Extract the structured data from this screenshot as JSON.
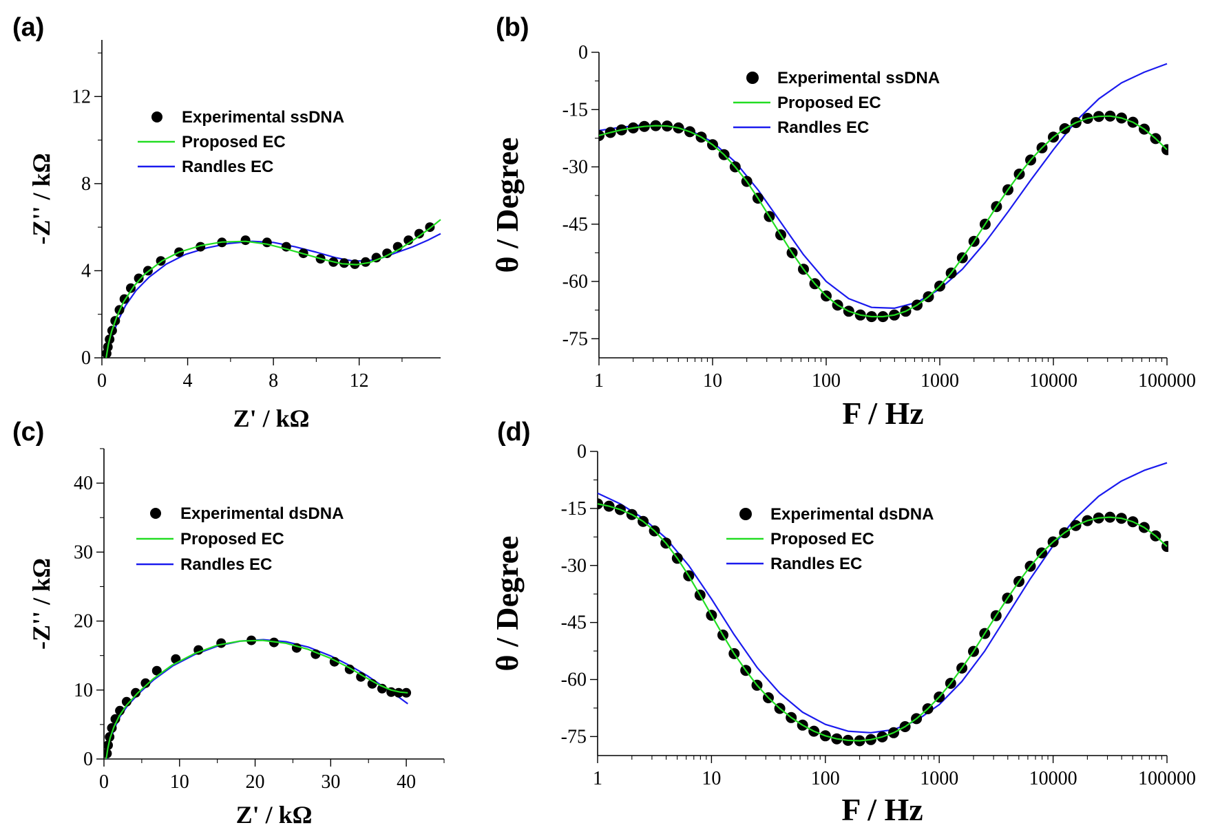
{
  "colors": {
    "experimental": "#000000",
    "proposed": "#22dd22",
    "randles": "#1a1aee",
    "axis": "#000000"
  },
  "chart_data": [
    {
      "id": "a",
      "panel_label": "(a)",
      "type": "scatter",
      "xscale": "linear",
      "xlim": [
        0,
        15.8
      ],
      "ylim": [
        0,
        14.6
      ],
      "xticks": [
        0,
        4,
        8,
        12
      ],
      "xtick_labels": [
        "0",
        "4",
        "8",
        "12"
      ],
      "yticks": [
        0,
        4,
        8,
        12
      ],
      "ytick_labels": [
        "0",
        "4",
        "8",
        "12"
      ],
      "xlabel": "Z' / kΩ",
      "ylabel": "-Z'' / kΩ",
      "legend": {
        "position": "upper-center",
        "entries": [
          "Experimental ssDNA",
          "Proposed EC",
          "Randles EC"
        ]
      },
      "series": [
        {
          "name": "Experimental ssDNA",
          "kind": "markers",
          "x": [
            0.22,
            0.28,
            0.36,
            0.48,
            0.62,
            0.82,
            1.05,
            1.35,
            1.72,
            2.15,
            2.75,
            3.6,
            4.6,
            5.6,
            6.7,
            7.7,
            8.6,
            9.4,
            10.2,
            10.8,
            11.3,
            11.8,
            12.3,
            12.8,
            13.3,
            13.8,
            14.3,
            14.8,
            15.3
          ],
          "y": [
            0.2,
            0.5,
            0.85,
            1.25,
            1.7,
            2.2,
            2.7,
            3.2,
            3.65,
            4.0,
            4.45,
            4.85,
            5.1,
            5.3,
            5.4,
            5.3,
            5.1,
            4.8,
            4.55,
            4.4,
            4.35,
            4.3,
            4.4,
            4.6,
            4.8,
            5.1,
            5.4,
            5.7,
            6.0
          ]
        },
        {
          "name": "Proposed EC",
          "kind": "line",
          "x": [
            0.2,
            0.3,
            0.45,
            0.7,
            1.0,
            1.5,
            2.0,
            2.8,
            3.6,
            4.6,
            5.6,
            6.7,
            7.7,
            8.6,
            9.5,
            10.4,
            11.2,
            11.9,
            12.5,
            13.2,
            13.9,
            14.6,
            15.3,
            15.8
          ],
          "y": [
            0.0,
            0.6,
            1.2,
            1.9,
            2.55,
            3.3,
            3.85,
            4.45,
            4.85,
            5.15,
            5.32,
            5.35,
            5.22,
            5.0,
            4.75,
            4.5,
            4.32,
            4.28,
            4.38,
            4.65,
            5.0,
            5.45,
            5.95,
            6.35
          ]
        },
        {
          "name": "Randles EC",
          "kind": "line",
          "x": [
            0.25,
            0.35,
            0.5,
            0.75,
            1.1,
            1.6,
            2.2,
            3.0,
            3.9,
            4.9,
            5.9,
            7.0,
            8.0,
            9.0,
            10.0,
            10.9,
            11.7,
            12.4,
            13.1,
            13.8,
            14.5,
            15.2,
            15.8
          ],
          "y": [
            0.0,
            0.5,
            1.05,
            1.7,
            2.4,
            3.1,
            3.7,
            4.3,
            4.75,
            5.05,
            5.25,
            5.35,
            5.3,
            5.1,
            4.85,
            4.6,
            4.45,
            4.45,
            4.6,
            4.85,
            5.1,
            5.4,
            5.7
          ]
        }
      ]
    },
    {
      "id": "b",
      "panel_label": "(b)",
      "type": "scatter",
      "xscale": "log",
      "xlim": [
        1,
        100000
      ],
      "ylim": [
        -80,
        0
      ],
      "xticks": [
        1,
        10,
        100,
        1000,
        10000,
        100000
      ],
      "xtick_labels": [
        "1",
        "10",
        "100",
        "1000",
        "10000",
        "100000"
      ],
      "yticks": [
        0,
        -15,
        -30,
        -45,
        -60,
        -75
      ],
      "ytick_labels": [
        "0",
        "-15",
        "-30",
        "-45",
        "-60",
        "-75"
      ],
      "xlabel": "F / Hz",
      "ylabel": "θ / Degree",
      "legend": {
        "position": "top-center",
        "entries": [
          "Experimental ssDNA",
          "Proposed EC",
          "Randles EC"
        ]
      },
      "series": [
        {
          "name": "Experimental ssDNA",
          "kind": "markers",
          "x": [
            1,
            1.26,
            1.58,
            2,
            2.51,
            3.16,
            3.98,
            5.01,
            6.31,
            7.94,
            10,
            12.6,
            15.8,
            20,
            25.1,
            31.6,
            39.8,
            50.1,
            63.1,
            79.4,
            100,
            126,
            158,
            200,
            251,
            316,
            398,
            501,
            631,
            794,
            1000,
            1260,
            1580,
            2000,
            2510,
            3160,
            3980,
            5010,
            6310,
            7940,
            10000,
            12600,
            15800,
            20000,
            25100,
            31600,
            39800,
            50100,
            63100,
            79400,
            100000
          ],
          "y": [
            -21.8,
            -21.0,
            -20.3,
            -19.8,
            -19.4,
            -19.2,
            -19.3,
            -19.8,
            -20.8,
            -22.2,
            -24.2,
            -26.8,
            -30.0,
            -33.8,
            -38.2,
            -43.0,
            -47.8,
            -52.5,
            -56.8,
            -60.6,
            -63.8,
            -66.2,
            -67.8,
            -68.8,
            -69.2,
            -69.2,
            -68.8,
            -67.8,
            -66.2,
            -64.0,
            -61.2,
            -57.8,
            -53.8,
            -49.5,
            -45.0,
            -40.4,
            -36.0,
            -31.9,
            -28.2,
            -25.0,
            -22.2,
            -20.0,
            -18.4,
            -17.3,
            -16.8,
            -16.7,
            -17.2,
            -18.3,
            -20.1,
            -22.6,
            -25.5
          ]
        },
        {
          "name": "Proposed EC",
          "kind": "line",
          "x": [
            1,
            1.26,
            1.58,
            2,
            2.51,
            3.16,
            3.98,
            5.01,
            6.31,
            7.94,
            10,
            12.6,
            15.8,
            20,
            25.1,
            31.6,
            39.8,
            50.1,
            63.1,
            79.4,
            100,
            126,
            158,
            200,
            251,
            316,
            398,
            501,
            631,
            794,
            1000,
            1260,
            1580,
            2000,
            2510,
            3160,
            3980,
            5010,
            6310,
            7940,
            10000,
            12600,
            15800,
            20000,
            25100,
            31600,
            39800,
            50100,
            63100,
            79400,
            100000
          ],
          "y": [
            -21.8,
            -21.0,
            -20.3,
            -19.8,
            -19.4,
            -19.2,
            -19.3,
            -19.8,
            -20.8,
            -22.2,
            -24.2,
            -26.8,
            -30.0,
            -33.8,
            -38.2,
            -43.0,
            -47.8,
            -52.5,
            -56.8,
            -60.6,
            -63.8,
            -66.2,
            -67.8,
            -68.8,
            -69.2,
            -69.2,
            -68.8,
            -67.8,
            -66.2,
            -64.0,
            -61.2,
            -57.8,
            -53.8,
            -49.5,
            -45.0,
            -40.4,
            -36.0,
            -31.9,
            -28.2,
            -25.0,
            -22.2,
            -20.0,
            -18.4,
            -17.3,
            -16.8,
            -16.7,
            -17.2,
            -18.3,
            -20.1,
            -22.6,
            -25.5
          ]
        },
        {
          "name": "Randles EC",
          "kind": "line",
          "x": [
            1,
            1.58,
            2.51,
            3.98,
            6.31,
            10,
            15.8,
            25.1,
            39.8,
            63.1,
            100,
            158,
            251,
            398,
            631,
            1000,
            1580,
            2510,
            3980,
            6310,
            10000,
            15800,
            25100,
            39800,
            63100,
            100000
          ],
          "y": [
            -20.5,
            -19.6,
            -19.0,
            -19.2,
            -20.4,
            -23.5,
            -28.7,
            -36.0,
            -44.5,
            -53.0,
            -60.0,
            -64.5,
            -66.8,
            -67.0,
            -65.5,
            -62.0,
            -56.8,
            -49.8,
            -41.8,
            -33.5,
            -25.5,
            -18.0,
            -12.2,
            -8.0,
            -5.2,
            -3.0
          ]
        }
      ]
    },
    {
      "id": "c",
      "panel_label": "(c)",
      "type": "scatter",
      "xscale": "linear",
      "xlim": [
        0,
        45
      ],
      "ylim": [
        0,
        45
      ],
      "xticks": [
        0,
        10,
        20,
        30,
        40
      ],
      "xtick_labels": [
        "0",
        "10",
        "20",
        "30",
        "40"
      ],
      "yticks": [
        0,
        10,
        20,
        30,
        40
      ],
      "ytick_labels": [
        "0",
        "10",
        "20",
        "30",
        "40"
      ],
      "xlabel": "Z' / kΩ",
      "ylabel": "-Z'' / kΩ",
      "legend": {
        "position": "upper-center",
        "entries": [
          "Experimental dsDNA",
          "Proposed EC",
          "Randles EC"
        ]
      },
      "series": [
        {
          "name": "Experimental dsDNA",
          "kind": "markers",
          "x": [
            0.4,
            0.55,
            0.75,
            1.05,
            1.5,
            2.1,
            3.0,
            4.2,
            5.5,
            7.0,
            9.5,
            12.5,
            15.5,
            19.5,
            22.5,
            25.5,
            28.0,
            30.5,
            32.5,
            34.0,
            35.5,
            36.8,
            38.0,
            39.0,
            40.0
          ],
          "y": [
            0.8,
            2.0,
            3.2,
            4.5,
            5.8,
            7.0,
            8.3,
            9.6,
            11.0,
            12.8,
            14.5,
            15.8,
            16.8,
            17.2,
            16.9,
            16.1,
            15.2,
            14.1,
            13.0,
            11.9,
            10.9,
            10.2,
            9.7,
            9.6,
            9.6
          ]
        },
        {
          "name": "Proposed EC",
          "kind": "line",
          "x": [
            0.3,
            0.5,
            0.8,
            1.3,
            2.0,
            3.0,
            4.5,
            6.5,
            9.0,
            12.0,
            15.0,
            18.0,
            21.0,
            24.0,
            27.0,
            30.0,
            32.5,
            34.5,
            36.5,
            38.0,
            39.2,
            40.2
          ],
          "y": [
            0.0,
            1.5,
            3.0,
            4.6,
            6.2,
            7.8,
            9.6,
            11.6,
            13.6,
            15.3,
            16.5,
            17.1,
            17.2,
            16.8,
            15.9,
            14.6,
            13.2,
            11.9,
            10.7,
            10.0,
            9.7,
            9.6
          ]
        },
        {
          "name": "Randles EC",
          "kind": "line",
          "x": [
            0.4,
            0.6,
            0.9,
            1.4,
            2.1,
            3.1,
            4.6,
            6.6,
            9.1,
            12.1,
            15.1,
            18.1,
            21.1,
            24.1,
            27.1,
            30.1,
            32.6,
            34.8,
            36.8,
            38.6,
            40.2
          ],
          "y": [
            0.0,
            1.4,
            2.9,
            4.5,
            6.1,
            7.7,
            9.5,
            11.5,
            13.5,
            15.2,
            16.4,
            17.1,
            17.3,
            17.0,
            16.2,
            14.9,
            13.5,
            12.1,
            10.6,
            9.3,
            8.0
          ]
        }
      ]
    },
    {
      "id": "d",
      "panel_label": "(d)",
      "type": "scatter",
      "xscale": "log",
      "xlim": [
        1,
        100000
      ],
      "ylim": [
        -80,
        0
      ],
      "xticks": [
        1,
        10,
        100,
        1000,
        10000,
        100000
      ],
      "xtick_labels": [
        "1",
        "10",
        "100",
        "1000",
        "10000",
        "100000"
      ],
      "yticks": [
        0,
        -15,
        -30,
        -45,
        -60,
        -75
      ],
      "ytick_labels": [
        "0",
        "-15",
        "-30",
        "-45",
        "-60",
        "-75"
      ],
      "xlabel": "F / Hz",
      "ylabel": "θ / Degree",
      "legend": {
        "position": "top-center",
        "entries": [
          "Experimental dsDNA",
          "Proposed EC",
          "Randles EC"
        ]
      },
      "series": [
        {
          "name": "Experimental dsDNA",
          "kind": "markers",
          "x": [
            1,
            1.26,
            1.58,
            2,
            2.51,
            3.16,
            3.98,
            5.01,
            6.31,
            7.94,
            10,
            12.6,
            15.8,
            20,
            25.1,
            31.6,
            39.8,
            50.1,
            63.1,
            79.4,
            100,
            126,
            158,
            200,
            251,
            316,
            398,
            501,
            631,
            794,
            1000,
            1260,
            1580,
            2000,
            2510,
            3160,
            3980,
            5010,
            6310,
            7940,
            10000,
            12600,
            15800,
            20000,
            25100,
            31600,
            39800,
            50100,
            63100,
            79400,
            100000
          ],
          "y": [
            -13.8,
            -14.4,
            -15.3,
            -16.6,
            -18.4,
            -20.9,
            -24.1,
            -28.1,
            -32.7,
            -37.8,
            -43.1,
            -48.3,
            -53.2,
            -57.6,
            -61.5,
            -64.8,
            -67.6,
            -70.0,
            -72.0,
            -73.6,
            -74.8,
            -75.6,
            -76.0,
            -76.1,
            -75.8,
            -75.1,
            -74.0,
            -72.4,
            -70.3,
            -67.7,
            -64.6,
            -61.0,
            -57.0,
            -52.6,
            -47.9,
            -43.2,
            -38.6,
            -34.2,
            -30.2,
            -26.7,
            -23.8,
            -21.4,
            -19.5,
            -18.2,
            -17.5,
            -17.3,
            -17.6,
            -18.5,
            -20.0,
            -22.2,
            -25.0
          ]
        },
        {
          "name": "Proposed EC",
          "kind": "line",
          "x": [
            1,
            1.26,
            1.58,
            2,
            2.51,
            3.16,
            3.98,
            5.01,
            6.31,
            7.94,
            10,
            12.6,
            15.8,
            20,
            25.1,
            31.6,
            39.8,
            50.1,
            63.1,
            79.4,
            100,
            126,
            158,
            200,
            251,
            316,
            398,
            501,
            631,
            794,
            1000,
            1260,
            1580,
            2000,
            2510,
            3160,
            3980,
            5010,
            6310,
            7940,
            10000,
            12600,
            15800,
            20000,
            25100,
            31600,
            39800,
            50100,
            63100,
            79400,
            100000
          ],
          "y": [
            -13.8,
            -14.4,
            -15.3,
            -16.6,
            -18.4,
            -20.9,
            -24.1,
            -28.1,
            -32.7,
            -37.8,
            -43.1,
            -48.3,
            -53.2,
            -57.6,
            -61.5,
            -64.8,
            -67.6,
            -70.0,
            -72.0,
            -73.6,
            -74.8,
            -75.6,
            -76.0,
            -76.1,
            -75.8,
            -75.1,
            -74.0,
            -72.4,
            -70.3,
            -67.7,
            -64.6,
            -61.0,
            -57.0,
            -52.6,
            -47.9,
            -43.2,
            -38.6,
            -34.2,
            -30.2,
            -26.7,
            -23.8,
            -21.4,
            -19.5,
            -18.2,
            -17.5,
            -17.3,
            -17.6,
            -18.5,
            -20.0,
            -22.2,
            -25.0
          ]
        },
        {
          "name": "Randles EC",
          "kind": "line",
          "x": [
            1,
            1.58,
            2.51,
            3.98,
            6.31,
            10,
            15.8,
            25.1,
            39.8,
            63.1,
            100,
            158,
            251,
            398,
            631,
            1000,
            1580,
            2510,
            3980,
            6310,
            10000,
            15800,
            25100,
            39800,
            63100,
            100000
          ],
          "y": [
            -11.0,
            -13.8,
            -17.6,
            -22.8,
            -30.0,
            -38.8,
            -48.2,
            -56.8,
            -63.6,
            -68.6,
            -71.8,
            -73.6,
            -74.0,
            -73.2,
            -70.8,
            -66.6,
            -60.5,
            -52.5,
            -43.0,
            -33.5,
            -24.8,
            -17.5,
            -11.8,
            -7.8,
            -5.0,
            -3.0
          ]
        }
      ]
    }
  ]
}
